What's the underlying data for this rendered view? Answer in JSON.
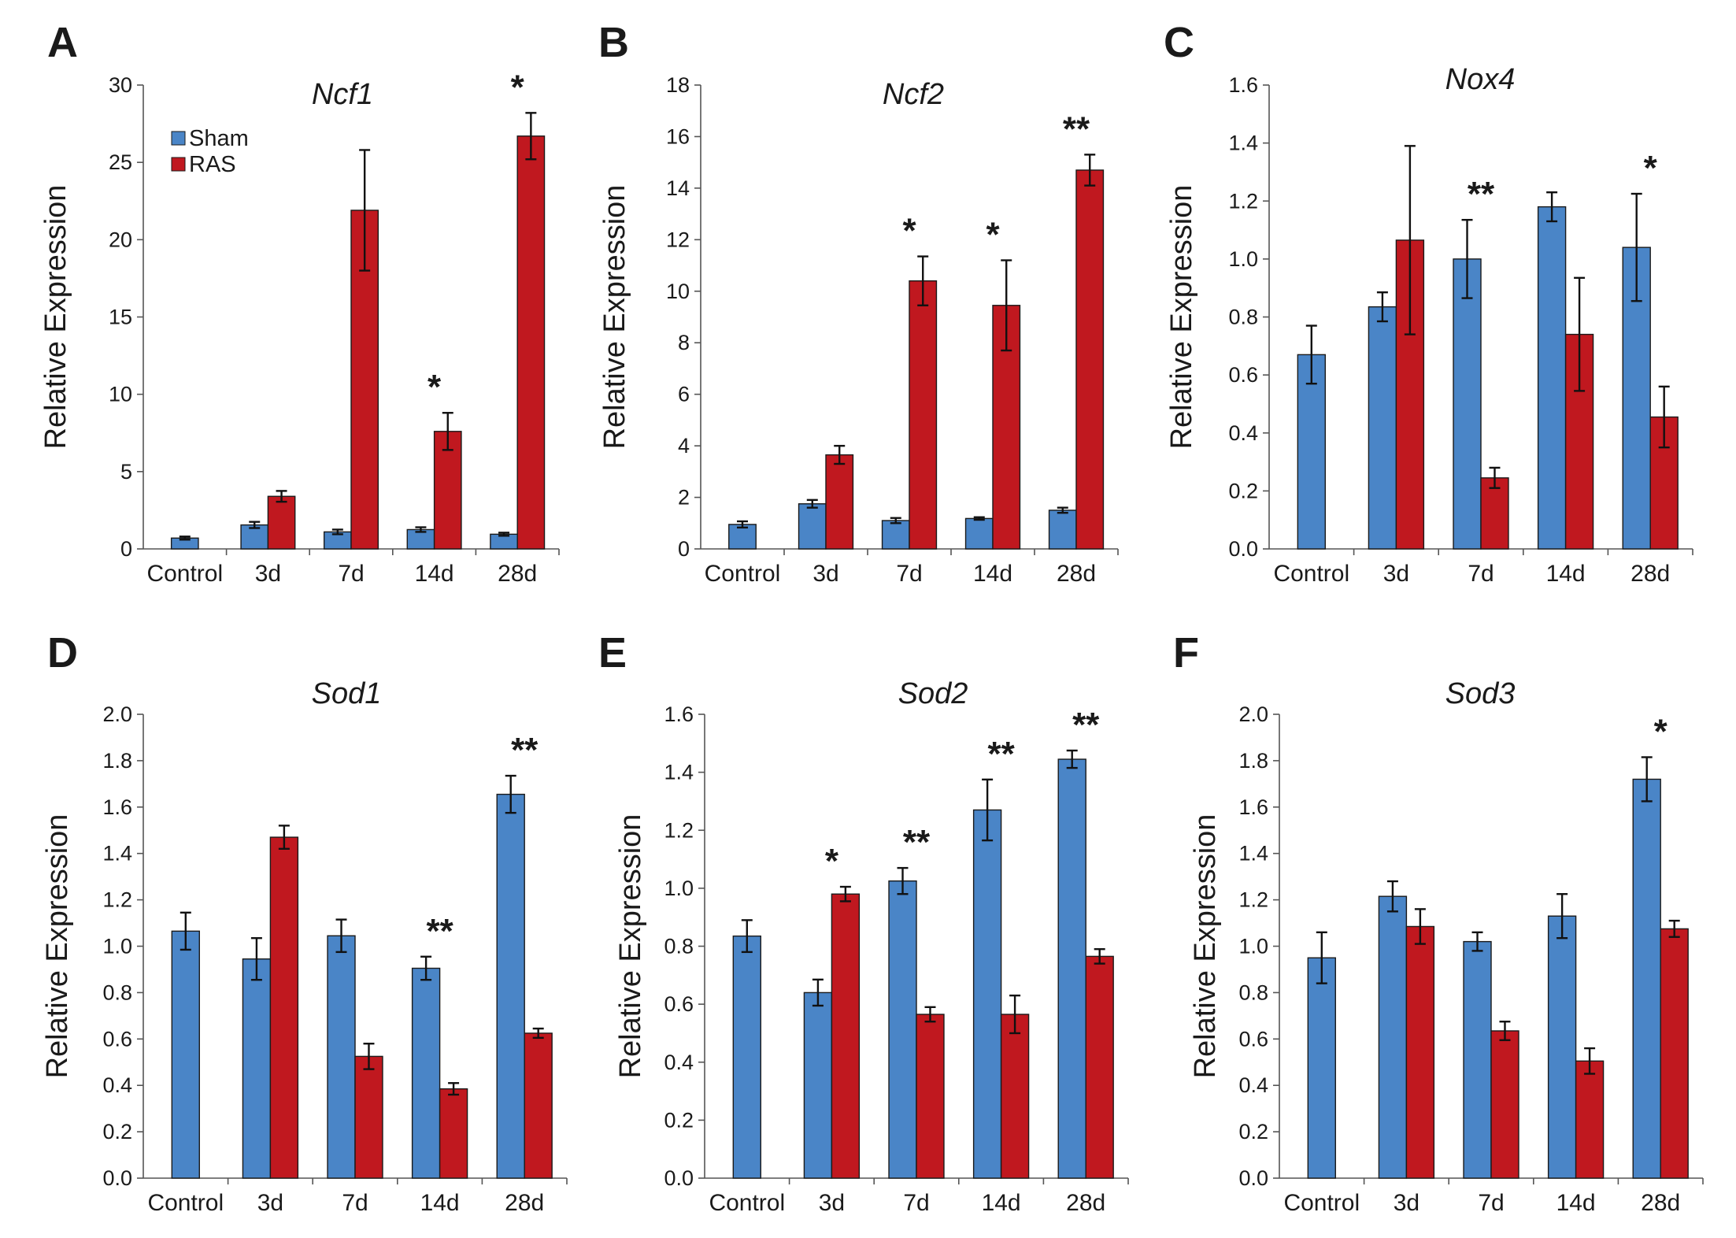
{
  "legend": [
    {
      "name": "Sham",
      "color": "#4a85c7"
    },
    {
      "name": "RAS",
      "color": "#c0181f"
    }
  ],
  "chart_data": [
    {
      "type": "bar",
      "panel": "A",
      "title": "Ncf1",
      "ylabel": "Relative Expression",
      "ylim": [
        0,
        30
      ],
      "yticks": [
        "0",
        "5",
        "10",
        "15",
        "20",
        "25",
        "30"
      ],
      "categories": [
        "Control",
        "3d",
        "7d",
        "14d",
        "28d"
      ],
      "series": [
        {
          "name": "Sham",
          "values": [
            0.7,
            1.55,
            1.1,
            1.25,
            0.95
          ],
          "errors": [
            0.1,
            0.2,
            0.15,
            0.15,
            0.1
          ]
        },
        {
          "name": "RAS",
          "values": [
            null,
            3.4,
            21.9,
            7.6,
            26.7
          ],
          "errors": [
            null,
            0.35,
            3.9,
            1.2,
            1.5
          ]
        }
      ],
      "significance": [
        "",
        "",
        "",
        "*",
        "*"
      ]
    },
    {
      "type": "bar",
      "panel": "B",
      "title": "Ncf2",
      "ylabel": "Relative Expression",
      "ylim": [
        0,
        18
      ],
      "yticks": [
        "0",
        "2",
        "4",
        "6",
        "8",
        "10",
        "12",
        "14",
        "16",
        "18"
      ],
      "categories": [
        "Control",
        "3d",
        "7d",
        "14d",
        "28d"
      ],
      "series": [
        {
          "name": "Sham",
          "values": [
            0.95,
            1.75,
            1.1,
            1.18,
            1.5
          ],
          "errors": [
            0.12,
            0.15,
            0.1,
            0.05,
            0.1
          ]
        },
        {
          "name": "RAS",
          "values": [
            null,
            3.65,
            10.4,
            9.45,
            14.7
          ],
          "errors": [
            null,
            0.35,
            0.95,
            1.75,
            0.6
          ]
        }
      ],
      "significance": [
        "",
        "",
        "*",
        "*",
        "**"
      ]
    },
    {
      "type": "bar",
      "panel": "C",
      "title": "Nox4",
      "ylabel": "Relative Expression",
      "ylim": [
        0,
        1.6
      ],
      "yticks": [
        "0.0",
        "0.2",
        "0.4",
        "0.6",
        "0.8",
        "1.0",
        "1.2",
        "1.4",
        "1.6"
      ],
      "categories": [
        "Control",
        "3d",
        "7d",
        "14d",
        "28d"
      ],
      "series": [
        {
          "name": "Sham",
          "values": [
            0.67,
            0.835,
            1.0,
            1.18,
            1.04
          ],
          "errors": [
            0.1,
            0.05,
            0.135,
            0.05,
            0.185
          ]
        },
        {
          "name": "RAS",
          "values": [
            null,
            1.065,
            0.245,
            0.74,
            0.455
          ],
          "errors": [
            null,
            0.325,
            0.035,
            0.195,
            0.105
          ]
        }
      ],
      "significance": [
        "",
        "",
        "**",
        "",
        "*"
      ]
    },
    {
      "type": "bar",
      "panel": "D",
      "title": "Sod1",
      "ylabel": "Relative Expression",
      "ylim": [
        0,
        2.0
      ],
      "yticks": [
        "0.0",
        "0.2",
        "0.4",
        "0.6",
        "0.8",
        "1.0",
        "1.2",
        "1.4",
        "1.6",
        "1.8",
        "2.0"
      ],
      "categories": [
        "Control",
        "3d",
        "7d",
        "14d",
        "28d"
      ],
      "series": [
        {
          "name": "Sham",
          "values": [
            1.065,
            0.945,
            1.045,
            0.905,
            1.655
          ],
          "errors": [
            0.08,
            0.09,
            0.07,
            0.05,
            0.08
          ]
        },
        {
          "name": "RAS",
          "values": [
            null,
            1.47,
            0.525,
            0.385,
            0.625
          ],
          "errors": [
            null,
            0.05,
            0.055,
            0.025,
            0.02
          ]
        }
      ],
      "significance": [
        "",
        "",
        "",
        "**",
        "**"
      ]
    },
    {
      "type": "bar",
      "panel": "E",
      "title": "Sod2",
      "ylabel": "Relative Expression",
      "ylim": [
        0,
        1.6
      ],
      "yticks": [
        "0.0",
        "0.2",
        "0.4",
        "0.6",
        "0.8",
        "1.0",
        "1.2",
        "1.4",
        "1.6"
      ],
      "categories": [
        "Control",
        "3d",
        "7d",
        "14d",
        "28d"
      ],
      "series": [
        {
          "name": "Sham",
          "values": [
            0.835,
            0.64,
            1.025,
            1.27,
            1.445
          ],
          "errors": [
            0.055,
            0.045,
            0.045,
            0.105,
            0.03
          ]
        },
        {
          "name": "RAS",
          "values": [
            null,
            0.98,
            0.565,
            0.565,
            0.765
          ],
          "errors": [
            null,
            0.025,
            0.025,
            0.065,
            0.025
          ]
        }
      ],
      "significance": [
        "",
        "*",
        "**",
        "**",
        "**"
      ]
    },
    {
      "type": "bar",
      "panel": "F",
      "title": "Sod3",
      "ylabel": "Relative Expression",
      "ylim": [
        0,
        2.0
      ],
      "yticks": [
        "0.0",
        "0.2",
        "0.4",
        "0.6",
        "0.8",
        "1.0",
        "1.2",
        "1.4",
        "1.6",
        "1.8",
        "2.0"
      ],
      "categories": [
        "Control",
        "3d",
        "7d",
        "14d",
        "28d"
      ],
      "series": [
        {
          "name": "Sham",
          "values": [
            0.95,
            1.215,
            1.02,
            1.13,
            1.72
          ],
          "errors": [
            0.11,
            0.065,
            0.04,
            0.095,
            0.095
          ]
        },
        {
          "name": "RAS",
          "values": [
            null,
            1.085,
            0.635,
            0.505,
            1.075
          ],
          "errors": [
            null,
            0.075,
            0.04,
            0.055,
            0.035
          ]
        }
      ],
      "significance": [
        "",
        "",
        "",
        "",
        "*"
      ]
    }
  ]
}
